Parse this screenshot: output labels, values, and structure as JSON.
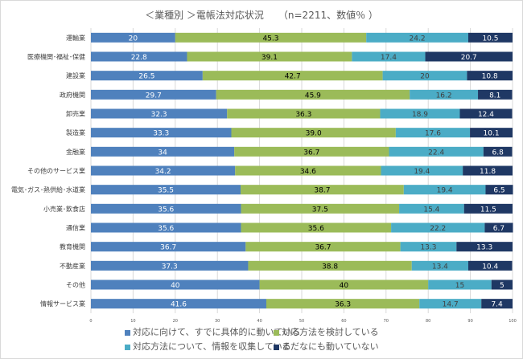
{
  "chart_data": {
    "type": "bar",
    "orientation": "horizontal",
    "stacked": true,
    "title": "＜業種別 ＞電帳法対応状況　　（n=2211、数値％ ）",
    "xlim": [
      0,
      100
    ],
    "xticks": [
      0,
      10,
      20,
      30,
      40,
      50,
      60,
      70,
      80,
      90,
      100
    ],
    "grid": "vertical",
    "legend_position": "bottom",
    "categories": [
      "運輸業",
      "医療機関･福祉･保健",
      "建設業",
      "政府機関",
      "卸売業",
      "製造業",
      "金融業",
      "その他のサービス業",
      "電気･ガス･熱供給･水道業",
      "小売業･飲食店",
      "通信業",
      "教育機関",
      "不動産業",
      "その他",
      "情報サービス業"
    ],
    "series": [
      {
        "name": "対応に向けて、すでに具体的に動いている",
        "color": "#4f81bd",
        "label_color": "#ffffff",
        "values": [
          20,
          22.8,
          26.5,
          29.7,
          32.3,
          33.3,
          34,
          34.2,
          35.5,
          35.6,
          35.6,
          36.7,
          37.3,
          40,
          41.6
        ]
      },
      {
        "name": "対応方法を検討している",
        "color": "#9bbb59",
        "label_color": "#000000",
        "values": [
          45.3,
          39.1,
          42.7,
          45.9,
          36.3,
          39.0,
          36.7,
          34.6,
          38.7,
          37.5,
          35.6,
          36.7,
          38.8,
          40,
          36.3
        ]
      },
      {
        "name": "対応方法について、情報を収集している",
        "color": "#4bacc6",
        "label_color": "#404040",
        "values": [
          24.2,
          17.4,
          20,
          16.2,
          18.9,
          17.6,
          22.4,
          19.4,
          19.4,
          15.4,
          22.2,
          13.3,
          13.4,
          15,
          14.7
        ]
      },
      {
        "name": "まだなにも動いていない",
        "color": "#1f3864",
        "label_color": "#ffffff",
        "values": [
          10.5,
          20.7,
          10.8,
          8.1,
          12.4,
          10.1,
          6.8,
          11.8,
          6.5,
          11.5,
          6.7,
          13.3,
          10.4,
          5,
          7.4
        ]
      }
    ],
    "value_labels": [
      [
        "20",
        "45.3",
        "24.2",
        "10.5"
      ],
      [
        "22.8",
        "39.1",
        "17.4",
        "20.7"
      ],
      [
        "26.5",
        "42.7",
        "20",
        "10.8"
      ],
      [
        "29.7",
        "45.9",
        "16.2",
        "8.1"
      ],
      [
        "32.3",
        "36.3",
        "18.9",
        "12.4"
      ],
      [
        "33.3",
        "39.0",
        "17.6",
        "10.1"
      ],
      [
        "34",
        "36.7",
        "22.4",
        "6.8"
      ],
      [
        "34.2",
        "34.6",
        "19.4",
        "11.8"
      ],
      [
        "35.5",
        "38.7",
        "19.4",
        "6.5"
      ],
      [
        "35.6",
        "37.5",
        "15.4",
        "11.5"
      ],
      [
        "35.6",
        "35.6",
        "22.2",
        "6.7"
      ],
      [
        "36.7",
        "36.7",
        "13.3",
        "13.3"
      ],
      [
        "37.3",
        "38.8",
        "13.4",
        "10.4"
      ],
      [
        "40",
        "40",
        "15",
        "5"
      ],
      [
        "41.6",
        "36.3",
        "14.7",
        "7.4"
      ]
    ]
  }
}
